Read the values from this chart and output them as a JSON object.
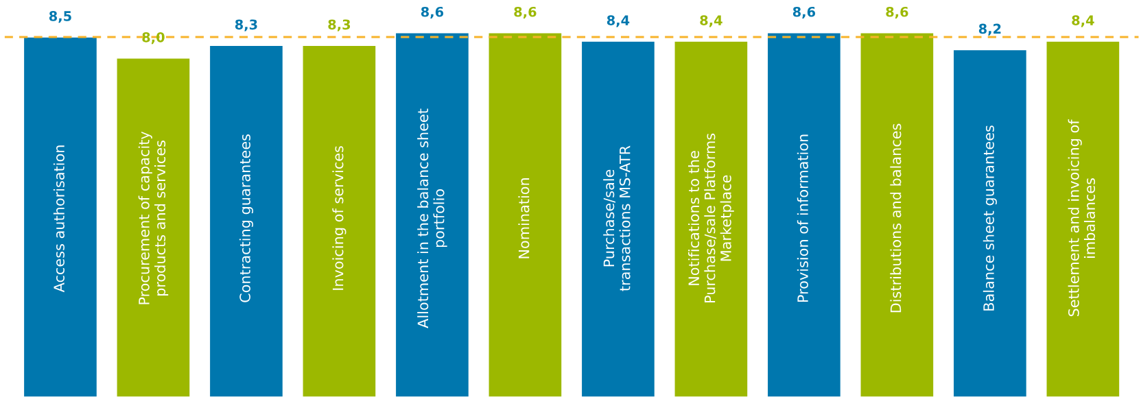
{
  "chart_data": {
    "type": "bar",
    "categories": [
      "Access authorisation",
      "Procurement of capacity\nproducts and services",
      "Contracting guarantees",
      "Invoicing of services",
      "Allotment in the balance sheet\nportfolio",
      "Nomination",
      "Purchase/sale\ntransactions MS-ATR",
      "Notifications to the\nPurchase/sale Platforms\nMarketplace",
      "Provision of information",
      "Distributions and balances",
      "Balance sheet guarantees",
      "Settlement and invoicing of\nimbalances"
    ],
    "values": [
      8.5,
      8.0,
      8.3,
      8.3,
      8.6,
      8.6,
      8.4,
      8.4,
      8.6,
      8.6,
      8.2,
      8.4
    ],
    "value_labels": [
      "8,5",
      "8,0",
      "8,3",
      "8,3",
      "8,6",
      "8,6",
      "8,4",
      "8,4",
      "8,6",
      "8,6",
      "8,2",
      "8,4"
    ],
    "colors": [
      "#0077ae",
      "#9cb800",
      "#0077ae",
      "#9cb800",
      "#0077ae",
      "#9cb800",
      "#0077ae",
      "#9cb800",
      "#0077ae",
      "#9cb800",
      "#0077ae",
      "#9cb800"
    ],
    "ref_lines": [
      {
        "axis": "y",
        "value": 8.5,
        "color": "#f7b32b",
        "line_style": "dashed"
      }
    ],
    "legend": false
  }
}
